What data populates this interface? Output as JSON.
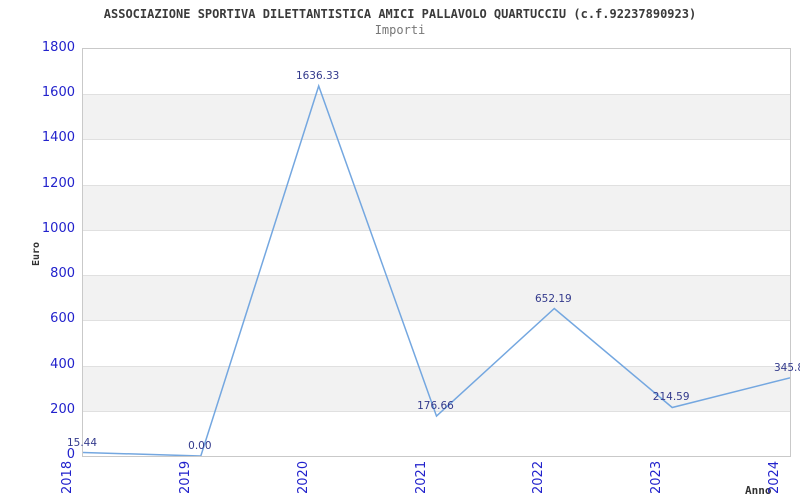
{
  "header": {
    "title": "ASSOCIAZIONE SPORTIVA DILETTANTISTICA AMICI PALLAVOLO QUARTUCCIU (c.f.92237890923)",
    "subtitle": "Importi"
  },
  "chart_data": {
    "type": "line",
    "title": "Importi",
    "categories": [
      "2018",
      "2019",
      "2020",
      "2021",
      "2022",
      "2023",
      "2024"
    ],
    "values": [
      15.44,
      0.0,
      1636.33,
      176.66,
      652.19,
      214.59,
      345.8
    ],
    "point_labels": [
      "15.44",
      "0.00",
      "1636.33",
      "176.66",
      "652.19",
      "214.59",
      "345.8"
    ],
    "xlabel": "Anno",
    "ylabel": "Euro",
    "ylim": [
      0,
      1800
    ],
    "ytick_step": 200,
    "yticks": [
      0,
      200,
      400,
      600,
      800,
      1000,
      1200,
      1400,
      1600,
      1800
    ],
    "grid": "horizontal gridlines with alternating shaded bands",
    "legend": "none",
    "colors": {
      "line": "#74a7e0",
      "axis_tick_label": "#2222cc",
      "data_label": "#333a8c",
      "band": "#f2f2f2",
      "gridline": "#e0e0e0",
      "border": "#c9c9c9",
      "title": "#3a3a3a",
      "subtitle": "#777777",
      "axis_title": "#333333"
    }
  }
}
